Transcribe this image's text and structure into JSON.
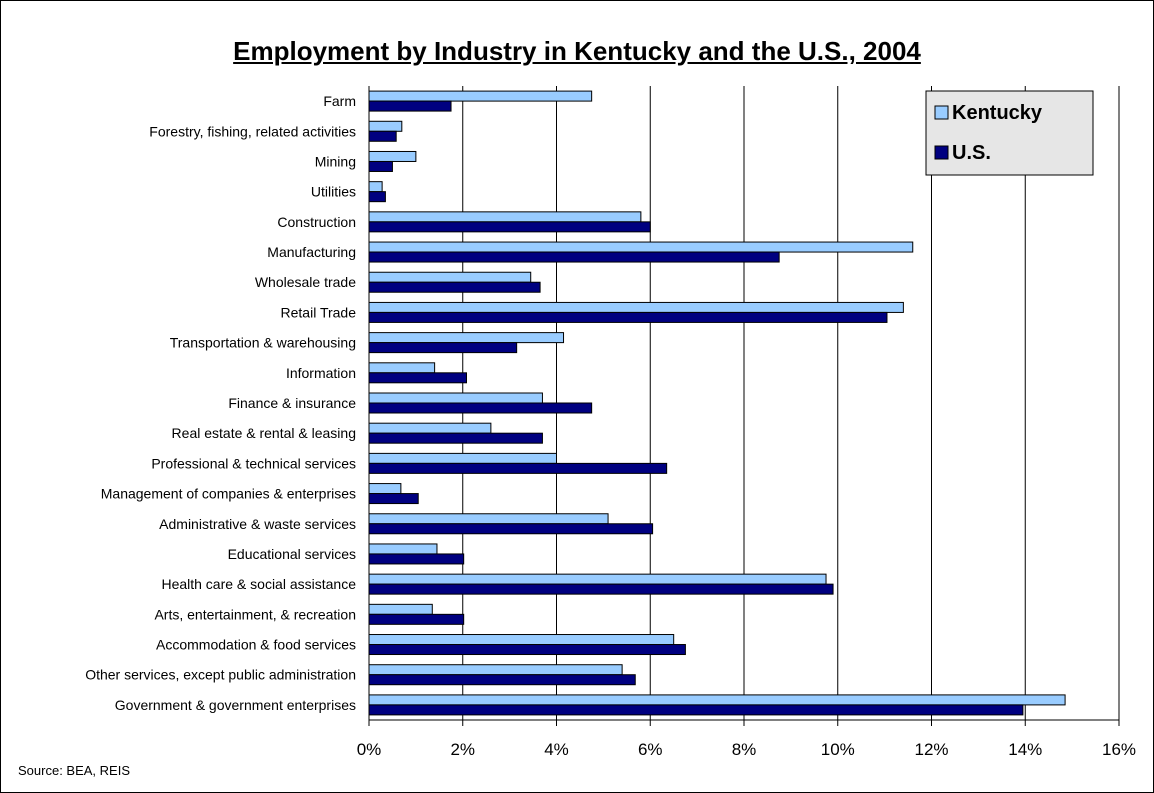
{
  "chart_data": {
    "type": "bar",
    "orientation": "horizontal",
    "title": "Employment by Industry in Kentucky and the U.S., 2004",
    "source": "Source: BEA, REIS",
    "categories": [
      "Farm",
      "Forestry, fishing, related activities",
      "Mining",
      "Utilities",
      "Construction",
      "Manufacturing",
      "Wholesale trade",
      "Retail Trade",
      "Transportation & warehousing",
      "Information",
      "Finance & insurance",
      "Real estate & rental & leasing",
      "Professional & technical services",
      "Management of companies & enterprises",
      "Administrative & waste services",
      "Educational services",
      "Health care & social assistance",
      "Arts, entertainment, & recreation",
      "Accommodation & food services",
      "Other services, except public administration",
      "Government & government enterprises"
    ],
    "series": [
      {
        "name": "Kentucky",
        "color": "#99ccff",
        "values": [
          4.75,
          0.7,
          1.0,
          0.28,
          5.8,
          11.6,
          3.45,
          11.4,
          4.15,
          1.4,
          3.7,
          2.6,
          4.0,
          0.68,
          5.1,
          1.45,
          9.75,
          1.35,
          6.5,
          5.4,
          14.85
        ]
      },
      {
        "name": "U.S.",
        "color": "#000080",
        "values": [
          1.75,
          0.58,
          0.5,
          0.35,
          6.0,
          8.75,
          3.65,
          11.05,
          3.15,
          2.08,
          4.75,
          3.7,
          6.35,
          1.05,
          6.05,
          2.02,
          9.9,
          2.02,
          6.75,
          5.68,
          13.95
        ]
      }
    ],
    "xlim": [
      0,
      16
    ],
    "xticks": [
      "0%",
      "2%",
      "4%",
      "6%",
      "8%",
      "10%",
      "12%",
      "14%",
      "16%"
    ],
    "grid": true,
    "legend_position": "top-right"
  }
}
